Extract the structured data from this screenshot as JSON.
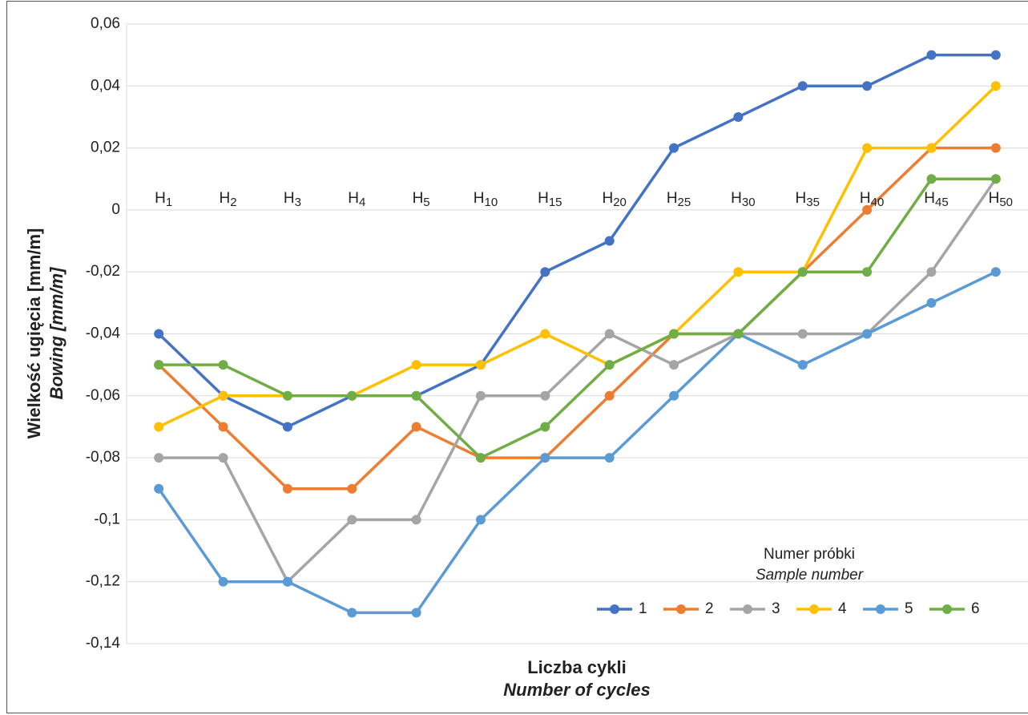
{
  "chart_data": {
    "type": "line",
    "ylabel": "Wielkość ugięcia [mm/m]",
    "ylabel_en": "Bowing [mm/m]",
    "xlabel": "Liczba cykli",
    "xlabel_en": "Number of cycles",
    "legend_title": "Numer próbki",
    "legend_title_en": "Sample number",
    "legend": "lower right",
    "grid": true,
    "categories": [
      "H1",
      "H2",
      "H3",
      "H4",
      "H5",
      "H10",
      "H15",
      "H20",
      "H25",
      "H30",
      "H35",
      "H40",
      "H45",
      "H50"
    ],
    "ylim": [
      -0.14,
      0.06
    ],
    "yticks": [
      {
        "value": -0.14,
        "label": "-0,14"
      },
      {
        "value": -0.12,
        "label": "-0,12"
      },
      {
        "value": -0.1,
        "label": "-0,1"
      },
      {
        "value": -0.08,
        "label": "-0,08"
      },
      {
        "value": -0.06,
        "label": "-0,06"
      },
      {
        "value": -0.04,
        "label": "-0,04"
      },
      {
        "value": -0.02,
        "label": "-0,02"
      },
      0,
      {
        "value": 0.02,
        "label": "0,02"
      },
      {
        "value": 0.04,
        "label": "0,04"
      },
      {
        "value": 0.06,
        "label": "0,06"
      }
    ],
    "series": [
      {
        "name": "1",
        "color": "#4472c4",
        "values": [
          -0.04,
          -0.06,
          -0.07,
          -0.06,
          -0.06,
          -0.05,
          -0.02,
          -0.01,
          0.02,
          0.03,
          0.04,
          0.04,
          0.05,
          0.05
        ]
      },
      {
        "name": "2",
        "color": "#ed7d31",
        "values": [
          -0.05,
          -0.07,
          -0.09,
          -0.09,
          -0.07,
          -0.08,
          -0.08,
          -0.06,
          -0.04,
          -0.04,
          -0.02,
          0,
          0.02,
          0.02
        ]
      },
      {
        "name": "3",
        "color": "#a5a5a5",
        "values": [
          -0.08,
          -0.08,
          -0.12,
          -0.1,
          -0.1,
          -0.06,
          -0.06,
          -0.04,
          -0.05,
          -0.04,
          -0.04,
          -0.04,
          -0.02,
          0.01
        ]
      },
      {
        "name": "4",
        "color": "#ffc000",
        "values": [
          -0.07,
          -0.06,
          -0.06,
          -0.06,
          -0.05,
          -0.05,
          -0.04,
          -0.05,
          -0.04,
          -0.02,
          -0.02,
          0.02,
          0.02,
          0.04
        ]
      },
      {
        "name": "5",
        "color": "#5b9bd5",
        "values": [
          -0.09,
          -0.12,
          -0.12,
          -0.13,
          -0.13,
          -0.1,
          -0.08,
          -0.08,
          -0.06,
          -0.04,
          -0.05,
          -0.04,
          -0.03,
          -0.02
        ]
      },
      {
        "name": "6",
        "color": "#70ad47",
        "values": [
          -0.05,
          -0.05,
          -0.06,
          -0.06,
          -0.06,
          -0.08,
          -0.07,
          -0.05,
          -0.04,
          -0.04,
          -0.02,
          -0.02,
          0.01,
          0.01
        ]
      }
    ]
  }
}
